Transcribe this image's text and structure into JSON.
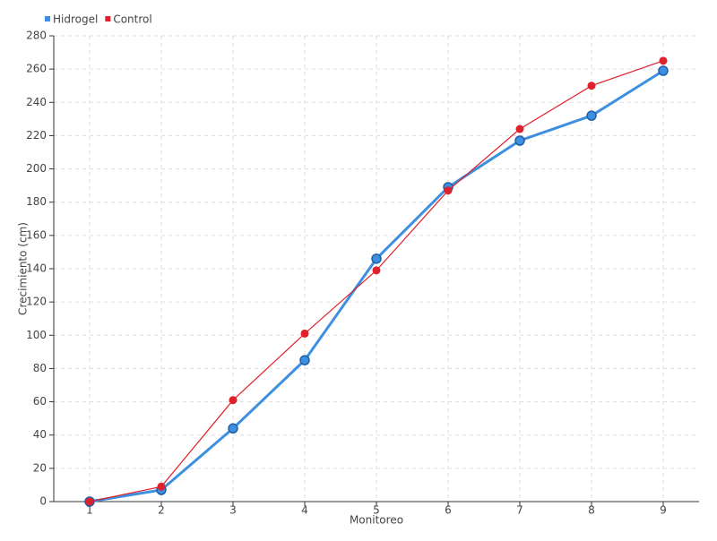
{
  "chart_data": {
    "type": "line",
    "x": [
      1,
      2,
      3,
      4,
      5,
      6,
      7,
      8,
      9
    ],
    "series": [
      {
        "name": "Hidrogel",
        "color": "#3d8fe0",
        "values": [
          0,
          7,
          44,
          85,
          146,
          189,
          217,
          232,
          259
        ]
      },
      {
        "name": "Control",
        "color": "#e0202a",
        "values": [
          0,
          9,
          61,
          101,
          139,
          187,
          224,
          250,
          265
        ]
      }
    ],
    "xlabel": "Monitoreo",
    "ylabel": "Crecimiento (cm)",
    "xlim": [
      0.5,
      9.5
    ],
    "xticks": [
      1,
      2,
      3,
      4,
      5,
      6,
      7,
      8,
      9
    ],
    "ylim": [
      0,
      280
    ],
    "yticks": [
      0,
      20,
      40,
      60,
      80,
      100,
      120,
      140,
      160,
      180,
      200,
      220,
      240,
      260,
      280
    ],
    "grid": true,
    "legend": "top-left"
  }
}
